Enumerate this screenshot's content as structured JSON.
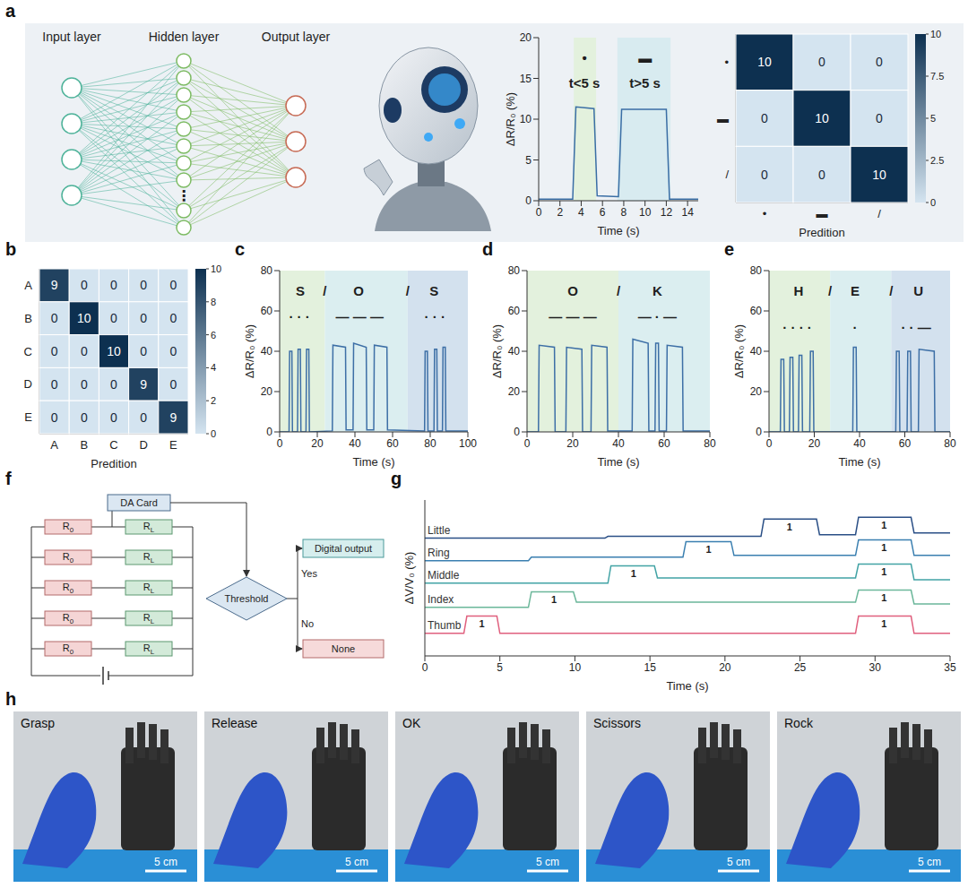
{
  "network": {
    "panel": "a",
    "layers": [
      {
        "label": "Input layer",
        "nodes": 4,
        "color": "#4fb39a"
      },
      {
        "label": "Hidden layer",
        "nodes": 10,
        "color": "#7dbb63"
      },
      {
        "label": "Output layer",
        "nodes": 3,
        "color": "#c76b55"
      }
    ],
    "ellipsis": "⋮"
  },
  "chart_data": [
    {
      "type": "line",
      "xlabel": "Time (s)",
      "ylabel": "ΔR/R₀ (%)",
      "xlim": [
        0,
        15
      ],
      "xticks": [
        0,
        2,
        4,
        6,
        8,
        10,
        12,
        14
      ],
      "ylim": [
        0,
        20
      ],
      "yticks": [
        0,
        5,
        10,
        15,
        20
      ],
      "series": [
        {
          "color": "#3a6ea5",
          "x": [
            0,
            3.2,
            3.5,
            5.2,
            5.5,
            7.5,
            7.8,
            12,
            12.3,
            15
          ],
          "values": [
            0.2,
            0.2,
            11.5,
            11.3,
            0.6,
            0.5,
            11.2,
            11.2,
            0.2,
            0.2
          ]
        }
      ],
      "highlights": [
        {
          "x": [
            3.3,
            5.4
          ],
          "color": "#e3f1dd"
        },
        {
          "x": [
            7.4,
            12.4
          ],
          "color": "#d8ebf0"
        }
      ],
      "annotations": [
        {
          "text": "•",
          "x": 4.3,
          "y": 17.5
        },
        {
          "text": "t<5 s",
          "x": 4.3,
          "y": 14.5
        },
        {
          "text": "▬",
          "x": 10,
          "y": 17.5
        },
        {
          "text": "t>5 s",
          "x": 10,
          "y": 14.5
        }
      ]
    },
    {
      "type": "heatmap",
      "x_categories": [
        "•",
        "▬",
        "/"
      ],
      "y_categories": [
        "•",
        "▬",
        "/"
      ],
      "xlabel": "Predition",
      "cells": [
        [
          10,
          0,
          0
        ],
        [
          0,
          10,
          0
        ],
        [
          0,
          0,
          10
        ]
      ],
      "colorbar": {
        "range": [
          0,
          10
        ],
        "ticks": [
          0,
          2.5,
          5,
          7.5,
          10
        ],
        "colors": [
          "#d4e4f0",
          "#0d3050"
        ]
      }
    },
    {
      "type": "heatmap",
      "panel": "b",
      "x_categories": [
        "A",
        "B",
        "C",
        "D",
        "E"
      ],
      "y_categories": [
        "A",
        "B",
        "C",
        "D",
        "E"
      ],
      "xlabel": "Predition",
      "cells": [
        [
          9,
          0,
          0,
          0,
          0
        ],
        [
          0,
          10,
          0,
          0,
          0
        ],
        [
          0,
          0,
          10,
          0,
          0
        ],
        [
          0,
          0,
          0,
          9,
          0
        ],
        [
          0,
          0,
          0,
          0,
          9
        ]
      ],
      "colorbar": {
        "range": [
          0,
          10
        ],
        "ticks": [
          0,
          2,
          4,
          6,
          8,
          10
        ],
        "colors": [
          "#d4e4f0",
          "#0d3050"
        ]
      }
    },
    {
      "type": "line",
      "panel": "c",
      "xlabel": "Time (s)",
      "ylabel": "ΔR/R₀ (%)",
      "xlim": [
        0,
        100
      ],
      "xticks": [
        0,
        20,
        40,
        60,
        80,
        100
      ],
      "ylim": [
        0,
        80
      ],
      "yticks": [
        0,
        20,
        40,
        60,
        80
      ],
      "series": [
        {
          "color": "#3d6fa6",
          "x": [
            0,
            5,
            5.3,
            6.5,
            6.8,
            9.5,
            9.8,
            11,
            11.3,
            14,
            14.3,
            15.5,
            15.8,
            28,
            28.3,
            35,
            35.3,
            39,
            39.3,
            46,
            46.3,
            50,
            50.3,
            57,
            57.3,
            77,
            77.3,
            78.5,
            78.8,
            82,
            82.3,
            83.5,
            83.8,
            86.5,
            86.8,
            88,
            88.3,
            100
          ],
          "values": [
            0,
            0,
            40,
            40,
            0,
            0,
            41,
            41,
            0,
            0,
            41,
            41,
            0,
            0.5,
            43,
            42,
            1,
            1,
            44,
            42,
            1,
            1,
            43,
            42,
            1,
            0.5,
            40,
            40,
            0.5,
            0.5,
            41,
            41,
            0.5,
            0.5,
            42,
            42,
            0.5,
            0.5
          ]
        }
      ],
      "highlights": [
        {
          "x": [
            0,
            24
          ],
          "color": "#e3f1dd"
        },
        {
          "x": [
            24,
            68
          ],
          "color": "#dbeef0"
        },
        {
          "x": [
            68,
            100
          ],
          "color": "#d3e1ee"
        }
      ],
      "annotations": [
        {
          "text": "S",
          "x": 11,
          "y": 70
        },
        {
          "text": "/",
          "x": 24,
          "y": 70
        },
        {
          "text": "O",
          "x": 42,
          "y": 70
        },
        {
          "text": "/",
          "x": 68,
          "y": 70
        },
        {
          "text": "S",
          "x": 82,
          "y": 70
        },
        {
          "text": "· · ·",
          "x": 10.5,
          "y": 57
        },
        {
          "text": "— — —",
          "x": 42.5,
          "y": 57
        },
        {
          "text": "· · ·",
          "x": 82.5,
          "y": 57
        }
      ]
    },
    {
      "type": "line",
      "panel": "d",
      "xlabel": "Time (s)",
      "ylabel": "ΔR/R₀ (%)",
      "xlim": [
        0,
        80
      ],
      "xticks": [
        0,
        20,
        40,
        60,
        80
      ],
      "ylim": [
        0,
        80
      ],
      "yticks": [
        0,
        20,
        40,
        60,
        80
      ],
      "series": [
        {
          "color": "#3d6fa6",
          "x": [
            0,
            5,
            5.3,
            12,
            12.3,
            17,
            17.3,
            24,
            24.3,
            28,
            28.3,
            35,
            35.3,
            46,
            46.3,
            53,
            53.3,
            56,
            56.3,
            57.5,
            57.8,
            61,
            61.3,
            68,
            68.3,
            80
          ],
          "values": [
            0,
            0,
            43,
            42,
            0,
            0,
            42,
            41,
            0,
            0,
            43,
            42,
            0.5,
            0.5,
            46,
            44,
            0.5,
            0.5,
            44,
            44,
            0.5,
            0.5,
            43,
            42,
            0.5,
            0.5
          ]
        }
      ],
      "highlights": [
        {
          "x": [
            0,
            40
          ],
          "color": "#e3f1dd"
        },
        {
          "x": [
            40,
            80
          ],
          "color": "#dbeef0"
        }
      ],
      "annotations": [
        {
          "text": "O",
          "x": 20,
          "y": 70
        },
        {
          "text": "/",
          "x": 40,
          "y": 70
        },
        {
          "text": "K",
          "x": 57,
          "y": 70
        },
        {
          "text": "— — —",
          "x": 20,
          "y": 57
        },
        {
          "text": "— · —",
          "x": 57,
          "y": 57
        }
      ]
    },
    {
      "type": "line",
      "panel": "e",
      "xlabel": "Time (s)",
      "ylabel": "ΔR/R₀ (%)",
      "xlim": [
        0,
        80
      ],
      "xticks": [
        0,
        20,
        40,
        60,
        80
      ],
      "ylim": [
        0,
        80
      ],
      "yticks": [
        0,
        20,
        40,
        60,
        80
      ],
      "series": [
        {
          "color": "#3d6fa6",
          "x": [
            0,
            5,
            5.3,
            6.5,
            6.8,
            9,
            9.3,
            10.5,
            10.8,
            13,
            13.3,
            14.5,
            14.8,
            18,
            18.3,
            19.5,
            19.8,
            37,
            37.3,
            38.5,
            38.8,
            56,
            56.3,
            57.5,
            57.8,
            61,
            61.3,
            62.5,
            62.8,
            66,
            66.3,
            73,
            73.3,
            80
          ],
          "values": [
            0,
            0,
            36,
            36,
            0,
            0,
            37,
            37,
            0,
            0,
            38,
            38,
            0,
            0,
            40,
            40,
            0,
            0,
            42,
            42,
            0,
            0,
            40,
            40,
            0,
            0,
            40,
            40,
            0,
            0,
            41,
            40,
            0,
            0
          ]
        }
      ],
      "highlights": [
        {
          "x": [
            0,
            27
          ],
          "color": "#e3f1dd"
        },
        {
          "x": [
            27,
            54
          ],
          "color": "#dbeef0"
        },
        {
          "x": [
            54,
            80
          ],
          "color": "#d3e1ee"
        }
      ],
      "annotations": [
        {
          "text": "H",
          "x": 13,
          "y": 70
        },
        {
          "text": "/",
          "x": 27,
          "y": 70
        },
        {
          "text": "E",
          "x": 38,
          "y": 70
        },
        {
          "text": "/",
          "x": 54,
          "y": 70
        },
        {
          "text": "U",
          "x": 66,
          "y": 70
        },
        {
          "text": "· · · ·",
          "x": 12.5,
          "y": 52
        },
        {
          "text": "·",
          "x": 38,
          "y": 52
        },
        {
          "text": "· · —",
          "x": 65,
          "y": 52
        }
      ]
    },
    {
      "type": "line",
      "panel": "g",
      "xlabel": "Time (s)",
      "ylabel": "ΔV/V₀ (%)",
      "xlim": [
        0,
        35
      ],
      "xticks": [
        0,
        5,
        10,
        15,
        20,
        25,
        30,
        35
      ],
      "ylim": [
        0,
        90
      ],
      "tick_labels": "x",
      "series": [
        {
          "name": "Little",
          "color": "#2a4f86",
          "x": [
            0,
            12,
            12.2,
            22.4,
            22.6,
            26.1,
            26.3,
            28.7,
            28.9,
            32.4,
            32.6,
            35
          ],
          "values": [
            68,
            68,
            69,
            69,
            79,
            79,
            70,
            70,
            80,
            80,
            71,
            71
          ]
        },
        {
          "name": "Ring",
          "color": "#3a7fb0",
          "x": [
            0,
            6.9,
            7.1,
            17.2,
            17.4,
            20.4,
            20.6,
            28.7,
            28.9,
            32.4,
            32.6,
            35
          ],
          "values": [
            55,
            55,
            57,
            57,
            66,
            66,
            58,
            58,
            67,
            67,
            58,
            58
          ]
        },
        {
          "name": "Middle",
          "color": "#42a3a5",
          "x": [
            0,
            12.2,
            12.4,
            15.3,
            15.5,
            28.7,
            28.9,
            32.4,
            32.6,
            35
          ],
          "values": [
            42,
            42,
            52,
            52,
            45,
            45,
            53,
            53,
            44,
            44
          ]
        },
        {
          "name": "Index",
          "color": "#6bb79a",
          "x": [
            0,
            6.9,
            7.1,
            9.9,
            10.1,
            28.7,
            28.9,
            32.4,
            32.6,
            35
          ],
          "values": [
            28,
            28,
            37,
            37,
            31,
            31,
            38,
            38,
            30,
            30
          ]
        },
        {
          "name": "Thumb",
          "color": "#e0607e",
          "x": [
            0,
            2.6,
            2.8,
            4.8,
            5,
            28.7,
            28.9,
            32.4,
            32.6,
            35
          ],
          "values": [
            13,
            13,
            23,
            23,
            13,
            13,
            23,
            23,
            13,
            13
          ]
        }
      ],
      "annotations": [
        {
          "text": "1",
          "x": 3.8,
          "y": 18.5
        },
        {
          "text": "1",
          "x": 8.6,
          "y": 32.5
        },
        {
          "text": "1",
          "x": 13.9,
          "y": 47.5
        },
        {
          "text": "1",
          "x": 18.9,
          "y": 61.5
        },
        {
          "text": "1",
          "x": 24.3,
          "y": 74.5
        },
        {
          "text": "1",
          "x": 30.6,
          "y": 18.5
        },
        {
          "text": "1",
          "x": 30.6,
          "y": 33.5
        },
        {
          "text": "1",
          "x": 30.6,
          "y": 48.5
        },
        {
          "text": "1",
          "x": 30.6,
          "y": 62.5
        },
        {
          "text": "1",
          "x": 30.6,
          "y": 75.5
        }
      ]
    }
  ],
  "circuit": {
    "panel": "f",
    "left_resistors": [
      "R0",
      "R0",
      "R0",
      "R0",
      "R0"
    ],
    "load_resistors": [
      "RL",
      "RL",
      "RL",
      "RL",
      "RL"
    ],
    "card": "DA Card",
    "decision": "Threshold",
    "yes": "Yes",
    "no": "No",
    "yes_output": "Digital output",
    "no_output": "None"
  },
  "photos": {
    "panel": "h",
    "captions": [
      "Grasp",
      "Release",
      "OK",
      "Scissors",
      "Rock"
    ],
    "scale_bar": "5 cm"
  }
}
